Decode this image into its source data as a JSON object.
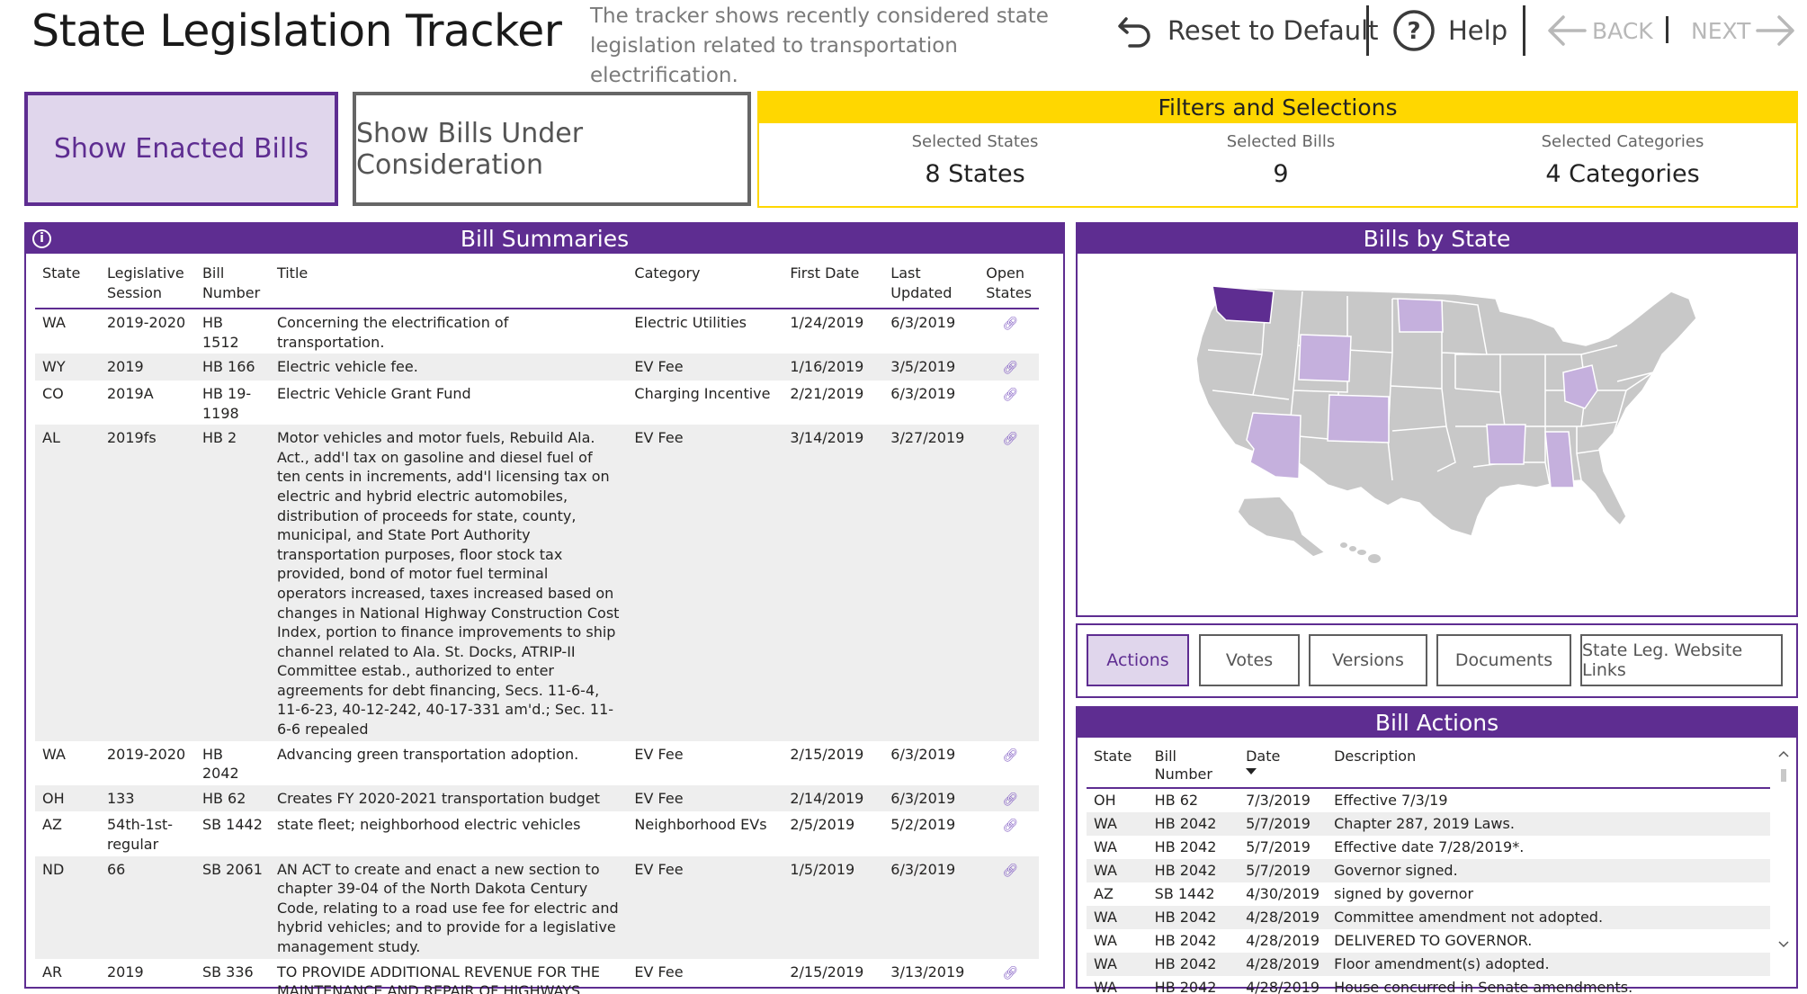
{
  "header": {
    "title": "State Legislation Tracker",
    "description": "The tracker shows recently considered state legislation related to transportation electrification.",
    "reset_label": "Reset to Default",
    "help_label": "Help",
    "back_label": "BACK",
    "next_label": "NEXT"
  },
  "toggles": {
    "enacted_label": "Show Enacted Bills",
    "consideration_label": "Show Bills Under Consideration"
  },
  "filters": {
    "title": "Filters and Selections",
    "states_label": "Selected States",
    "states_value": "8 States",
    "bills_label": "Selected Bills",
    "bills_value": "9",
    "categories_label": "Selected Categories",
    "categories_value": "4 Categories"
  },
  "bills": {
    "title": "Bill Summaries",
    "columns": {
      "state": "State",
      "session": "Legislative Session",
      "bill": "Bill Number",
      "title": "Title",
      "category": "Category",
      "first": "First Date",
      "last": "Last Updated",
      "open": "Open States"
    },
    "rows": [
      {
        "state": "WA",
        "session": "2019-2020",
        "bill": "HB 1512",
        "title": "Concerning the electrification of transportation.",
        "category": "Electric Utilities",
        "first": "1/24/2019",
        "last": "6/3/2019"
      },
      {
        "state": "WY",
        "session": "2019",
        "bill": "HB 166",
        "title": "Electric vehicle fee.",
        "category": "EV Fee",
        "first": "1/16/2019",
        "last": "3/5/2019"
      },
      {
        "state": "CO",
        "session": "2019A",
        "bill": "HB 19-1198",
        "title": "Electric Vehicle Grant Fund",
        "category": "Charging Incentive",
        "first": "2/21/2019",
        "last": "6/3/2019"
      },
      {
        "state": "AL",
        "session": "2019fs",
        "bill": "HB 2",
        "title": "Motor vehicles and motor fuels, Rebuild Ala. Act., add'l tax on gasoline and diesel fuel of ten cents in increments, add'l licensing tax on electric and hybrid electric automobiles, distribution of proceeds for state, county, municipal, and State Port Authority transportation purposes, floor stock tax provided, bond of motor fuel terminal operators increased, taxes increased based on changes in National Highway Construction Cost Index, portion to finance improvements to ship channel related to Ala. St. Docks, ATRIP-II Committee estab., authorized to enter agreements for debt financing, Secs. 11-6-4, 11-6-23, 40-12-242, 40-17-331 am'd.; Sec. 11-6-6 repealed",
        "category": "EV Fee",
        "first": "3/14/2019",
        "last": "3/27/2019"
      },
      {
        "state": "WA",
        "session": "2019-2020",
        "bill": "HB 2042",
        "title": "Advancing green transportation adoption.",
        "category": "EV Fee",
        "first": "2/15/2019",
        "last": "6/3/2019"
      },
      {
        "state": "OH",
        "session": "133",
        "bill": "HB 62",
        "title": "Creates FY 2020-2021 transportation budget",
        "category": "EV Fee",
        "first": "2/14/2019",
        "last": "6/3/2019"
      },
      {
        "state": "AZ",
        "session": "54th-1st-regular",
        "bill": "SB 1442",
        "title": "state fleet; neighborhood electric vehicles",
        "category": "Neighborhood EVs",
        "first": "2/5/2019",
        "last": "5/2/2019"
      },
      {
        "state": "ND",
        "session": "66",
        "bill": "SB 2061",
        "title": "AN ACT to create and enact a new section to chapter 39-04 of the North Dakota Century Code, relating to a road use fee for electric and hybrid vehicles; and to provide for a legislative management study.",
        "category": "EV Fee",
        "first": "1/5/2019",
        "last": "6/3/2019"
      },
      {
        "state": "AR",
        "session": "2019",
        "bill": "SB 336",
        "title": "TO PROVIDE ADDITIONAL REVENUE FOR THE MAINTENANCE AND REPAIR OF HIGHWAYS, STREETS, AND BRIDGES IN THE STATE.",
        "category": "EV Fee",
        "first": "2/15/2019",
        "last": "3/13/2019"
      }
    ]
  },
  "map": {
    "title": "Bills by State",
    "highlight_color": "#c5b0dd",
    "selected_color": "#5e2d91",
    "base_color": "#c8c8c8"
  },
  "tabs": [
    "Actions",
    "Votes",
    "Versions",
    "Documents",
    "State Leg. Website Links"
  ],
  "actions": {
    "title": "Bill Actions",
    "columns": {
      "state": "State",
      "bill": "Bill Number",
      "date": "Date",
      "desc": "Description"
    },
    "rows": [
      {
        "state": "OH",
        "bill": "HB 62",
        "date": "7/3/2019",
        "desc": "Effective 7/3/19"
      },
      {
        "state": "WA",
        "bill": "HB 2042",
        "date": "5/7/2019",
        "desc": "Chapter 287, 2019 Laws."
      },
      {
        "state": "WA",
        "bill": "HB 2042",
        "date": "5/7/2019",
        "desc": "Effective date 7/28/2019*."
      },
      {
        "state": "WA",
        "bill": "HB 2042",
        "date": "5/7/2019",
        "desc": "Governor signed."
      },
      {
        "state": "AZ",
        "bill": "SB 1442",
        "date": "4/30/2019",
        "desc": "signed by governor"
      },
      {
        "state": "WA",
        "bill": "HB 2042",
        "date": "4/28/2019",
        "desc": "Committee amendment not adopted."
      },
      {
        "state": "WA",
        "bill": "HB 2042",
        "date": "4/28/2019",
        "desc": "DELIVERED TO GOVERNOR."
      },
      {
        "state": "WA",
        "bill": "HB 2042",
        "date": "4/28/2019",
        "desc": "Floor amendment(s) adopted."
      },
      {
        "state": "WA",
        "bill": "HB 2042",
        "date": "4/28/2019",
        "desc": "House concurred in Senate amendments."
      }
    ]
  }
}
